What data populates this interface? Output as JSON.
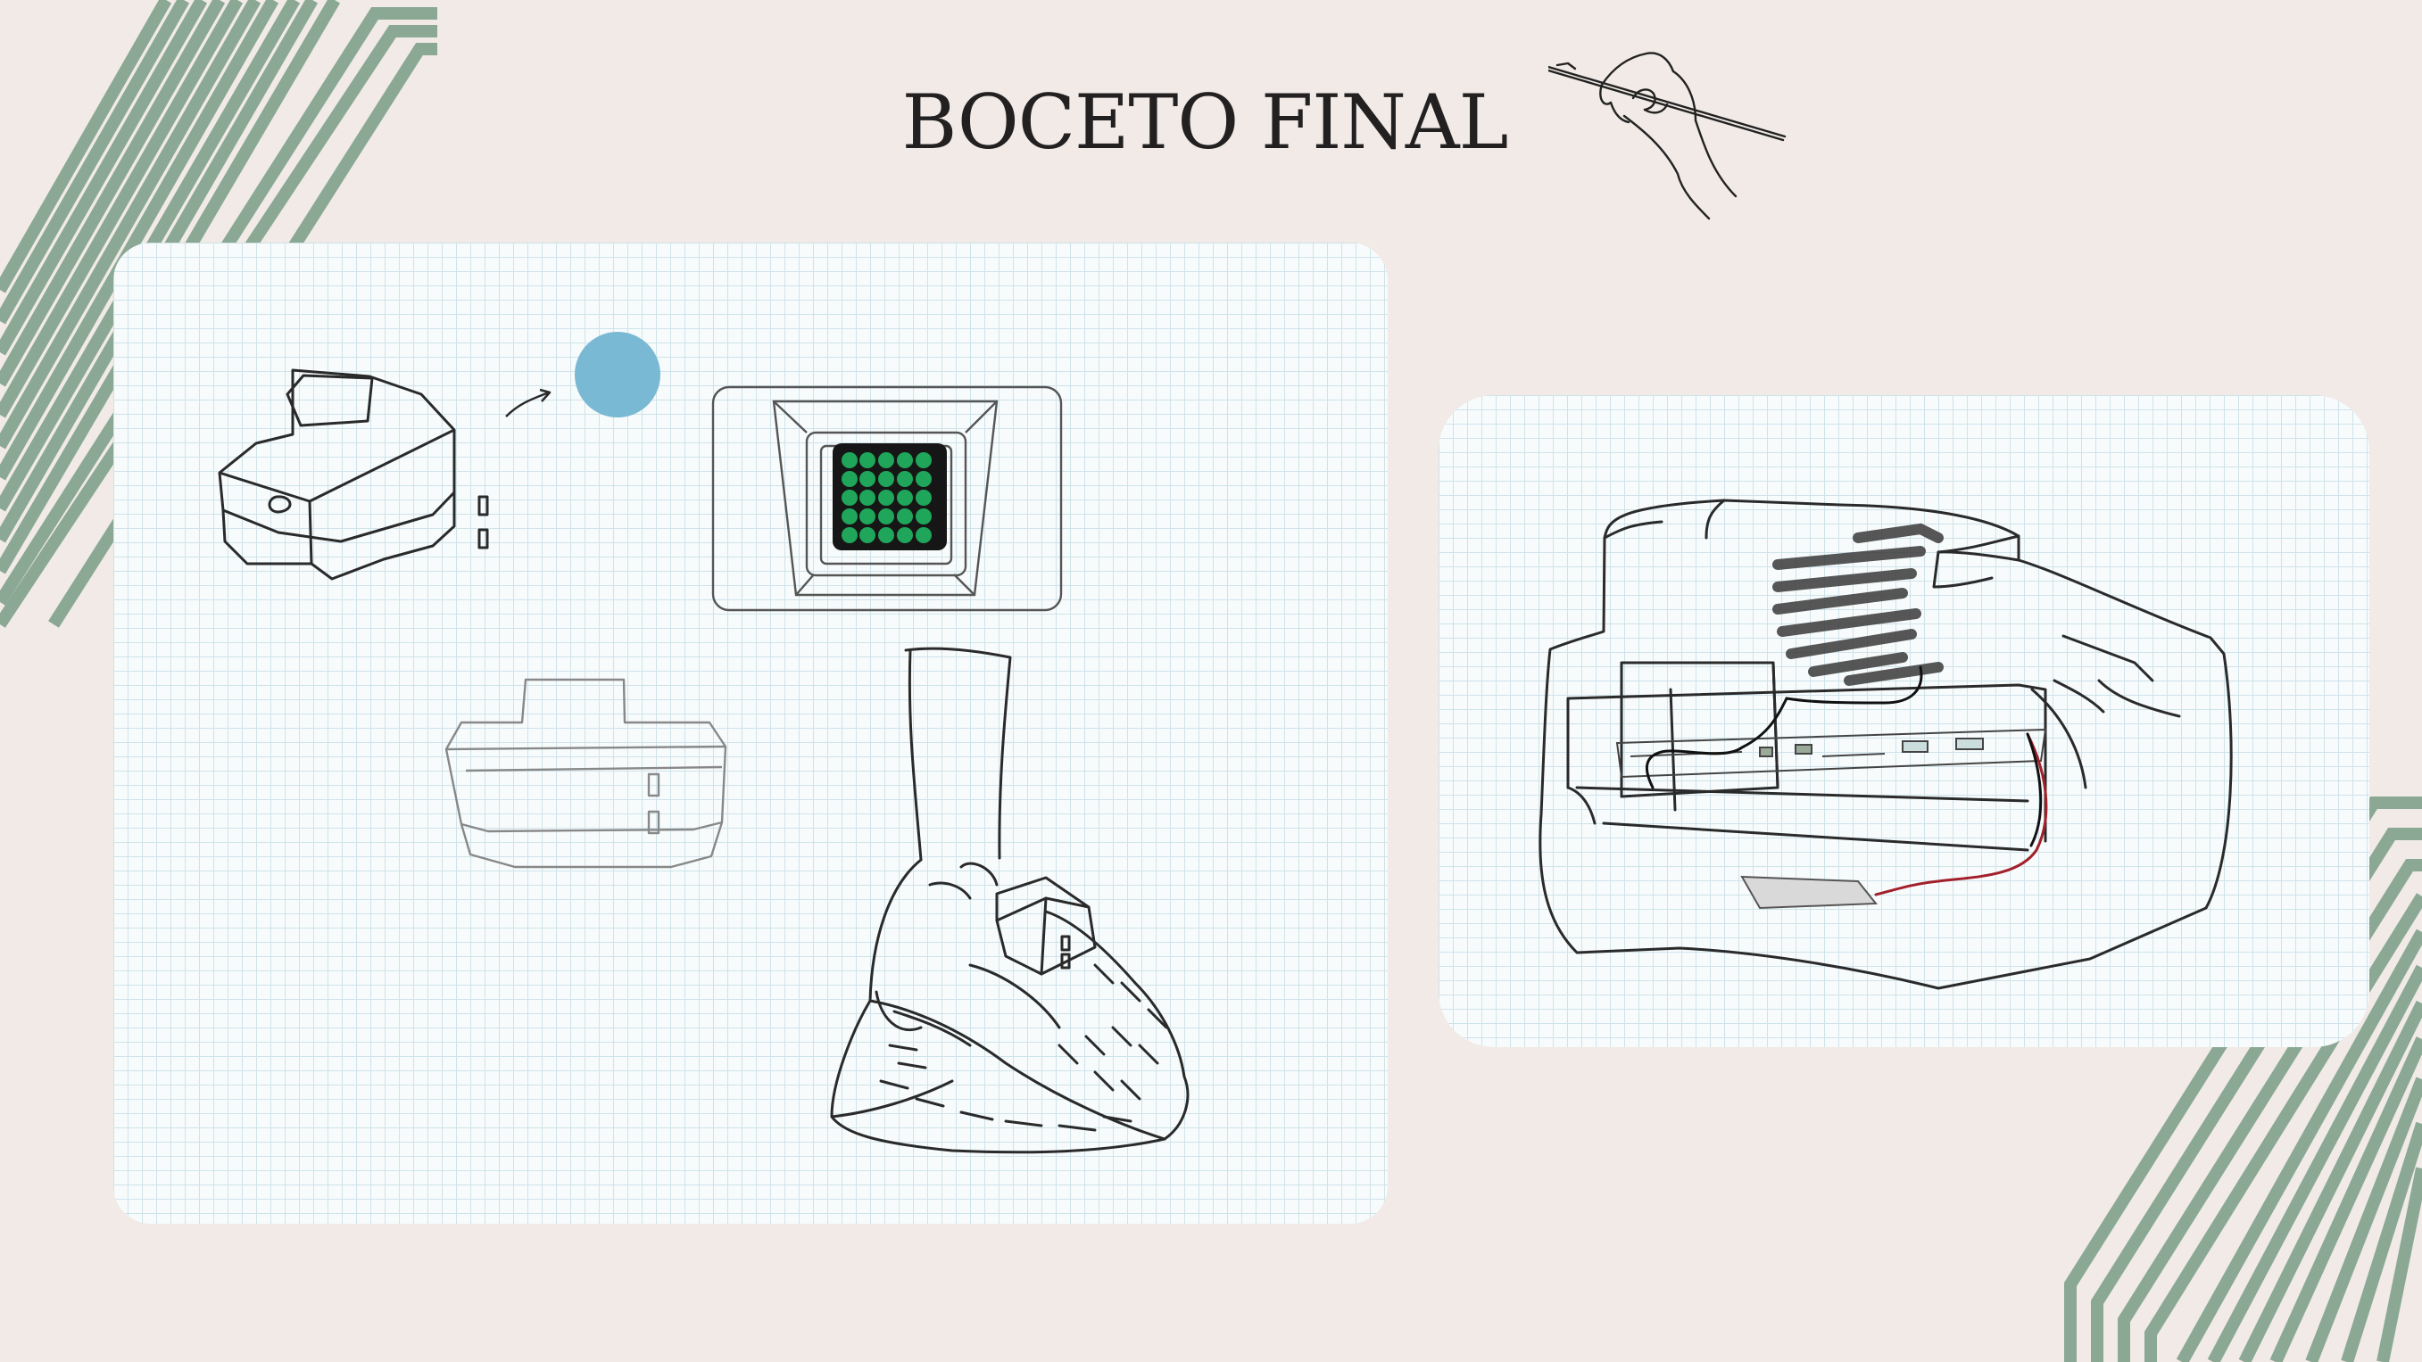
{
  "slide": {
    "title": "BOCETO FINAL"
  },
  "colors": {
    "background": "#f1eae6",
    "stripe_green": "#8aa893",
    "grid_line": "#cfe3ea",
    "led_green": "#1fa65a",
    "accent_blue": "#79b9d3"
  },
  "icons": {
    "hand_drawing": "hand-drawing-icon"
  }
}
